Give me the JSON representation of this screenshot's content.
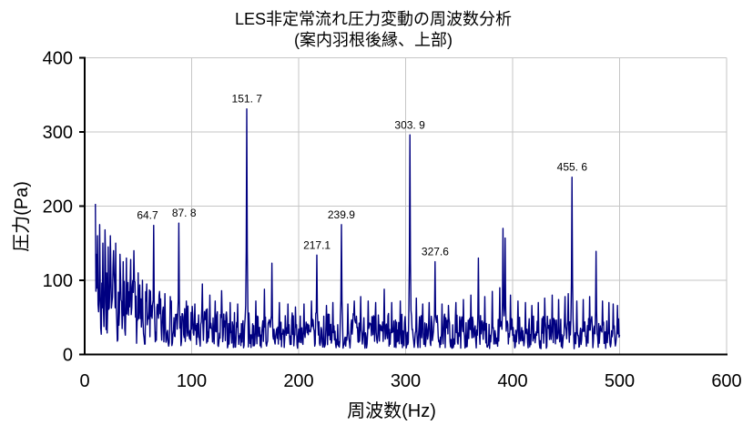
{
  "chart_data": {
    "type": "line",
    "title": "LES非定常流れ圧力変動の周波数分析",
    "subtitle": "(案内羽根後縁、上部)",
    "xlabel": "周波数(Hz)",
    "ylabel": "圧力(Pa)",
    "xlim": [
      0,
      600
    ],
    "ylim": [
      0,
      400
    ],
    "xticks": [
      0,
      100,
      200,
      300,
      400,
      500,
      600
    ],
    "yticks": [
      0,
      100,
      200,
      300,
      400
    ],
    "grid": true,
    "legend": false,
    "line_color": "#000080",
    "grid_color": "#c6c6c6",
    "axis_color": "#000000",
    "freq_range_hz": [
      10,
      500
    ],
    "sample_step_hz": 0.5,
    "noise_seed": 7,
    "labeled_peaks": [
      {
        "freq": 64.7,
        "amp": 174,
        "label": "64.7",
        "dx": -7
      },
      {
        "freq": 87.8,
        "amp": 177,
        "label": "87. 8",
        "dx": 6
      },
      {
        "freq": 151.7,
        "amp": 331,
        "label": "151. 7",
        "dx": 0
      },
      {
        "freq": 217.1,
        "amp": 134,
        "label": "217.1",
        "dx": 0
      },
      {
        "freq": 239.9,
        "amp": 175,
        "label": "239.9",
        "dx": 0
      },
      {
        "freq": 303.9,
        "amp": 296,
        "label": "303. 9",
        "dx": 0
      },
      {
        "freq": 327.6,
        "amp": 125,
        "label": "327.6",
        "dx": 0
      },
      {
        "freq": 455.6,
        "amp": 239,
        "label": "455. 6",
        "dx": 0
      }
    ],
    "minor_peaks": [
      {
        "freq": 10,
        "amp": 203
      },
      {
        "freq": 12,
        "amp": 160
      },
      {
        "freq": 14,
        "amp": 175
      },
      {
        "freq": 17,
        "amp": 150
      },
      {
        "freq": 19,
        "amp": 168
      },
      {
        "freq": 22,
        "amp": 145
      },
      {
        "freq": 24,
        "amp": 160
      },
      {
        "freq": 27,
        "amp": 140
      },
      {
        "freq": 29,
        "amp": 150
      },
      {
        "freq": 33,
        "amp": 135
      },
      {
        "freq": 36,
        "amp": 125
      },
      {
        "freq": 39,
        "amp": 130
      },
      {
        "freq": 43,
        "amp": 128
      },
      {
        "freq": 46,
        "amp": 140
      },
      {
        "freq": 50,
        "amp": 110
      },
      {
        "freq": 54,
        "amp": 100
      },
      {
        "freq": 58,
        "amp": 95
      },
      {
        "freq": 70,
        "amp": 85
      },
      {
        "freq": 75,
        "amp": 82
      },
      {
        "freq": 80,
        "amp": 78
      },
      {
        "freq": 95,
        "amp": 72
      },
      {
        "freq": 103,
        "amp": 68
      },
      {
        "freq": 110,
        "amp": 95
      },
      {
        "freq": 117,
        "amp": 80
      },
      {
        "freq": 122,
        "amp": 72
      },
      {
        "freq": 128,
        "amp": 86
      },
      {
        "freq": 136,
        "amp": 70
      },
      {
        "freq": 143,
        "amp": 68
      },
      {
        "freq": 160,
        "amp": 72
      },
      {
        "freq": 168,
        "amp": 88
      },
      {
        "freq": 175,
        "amp": 123
      },
      {
        "freq": 182,
        "amp": 70
      },
      {
        "freq": 190,
        "amp": 68
      },
      {
        "freq": 197,
        "amp": 64
      },
      {
        "freq": 205,
        "amp": 68
      },
      {
        "freq": 212,
        "amp": 72
      },
      {
        "freq": 226,
        "amp": 66
      },
      {
        "freq": 232,
        "amp": 70
      },
      {
        "freq": 246,
        "amp": 68
      },
      {
        "freq": 252,
        "amp": 72
      },
      {
        "freq": 258,
        "amp": 78
      },
      {
        "freq": 265,
        "amp": 72
      },
      {
        "freq": 272,
        "amp": 70
      },
      {
        "freq": 280,
        "amp": 88
      },
      {
        "freq": 287,
        "amp": 70
      },
      {
        "freq": 295,
        "amp": 72
      },
      {
        "freq": 310,
        "amp": 76
      },
      {
        "freq": 316,
        "amp": 68
      },
      {
        "freq": 322,
        "amp": 70
      },
      {
        "freq": 334,
        "amp": 68
      },
      {
        "freq": 340,
        "amp": 66
      },
      {
        "freq": 347,
        "amp": 70
      },
      {
        "freq": 354,
        "amp": 74
      },
      {
        "freq": 361,
        "amp": 80
      },
      {
        "freq": 368,
        "amp": 130
      },
      {
        "freq": 374,
        "amp": 78
      },
      {
        "freq": 381,
        "amp": 85
      },
      {
        "freq": 388,
        "amp": 90
      },
      {
        "freq": 391,
        "amp": 170
      },
      {
        "freq": 393,
        "amp": 157
      },
      {
        "freq": 398,
        "amp": 80
      },
      {
        "freq": 405,
        "amp": 72
      },
      {
        "freq": 412,
        "amp": 70
      },
      {
        "freq": 418,
        "amp": 66
      },
      {
        "freq": 424,
        "amp": 70
      },
      {
        "freq": 430,
        "amp": 76
      },
      {
        "freq": 437,
        "amp": 80
      },
      {
        "freq": 443,
        "amp": 74
      },
      {
        "freq": 449,
        "amp": 78
      },
      {
        "freq": 452,
        "amp": 82
      },
      {
        "freq": 460,
        "amp": 72
      },
      {
        "freq": 466,
        "amp": 74
      },
      {
        "freq": 472,
        "amp": 78
      },
      {
        "freq": 478,
        "amp": 139
      },
      {
        "freq": 484,
        "amp": 72
      },
      {
        "freq": 490,
        "amp": 70
      },
      {
        "freq": 494,
        "amp": 68
      },
      {
        "freq": 498,
        "amp": 66
      }
    ],
    "noise_envelope": {
      "freqs": [
        10,
        15,
        20,
        25,
        30,
        35,
        40,
        45,
        50,
        60,
        70,
        80,
        90,
        100,
        120,
        140,
        160,
        200,
        250,
        300,
        350,
        400,
        450,
        500
      ],
      "max_amp": [
        140,
        135,
        130,
        125,
        118,
        112,
        108,
        105,
        98,
        88,
        80,
        74,
        70,
        66,
        62,
        58,
        56,
        56,
        56,
        56,
        54,
        52,
        52,
        50
      ]
    }
  }
}
